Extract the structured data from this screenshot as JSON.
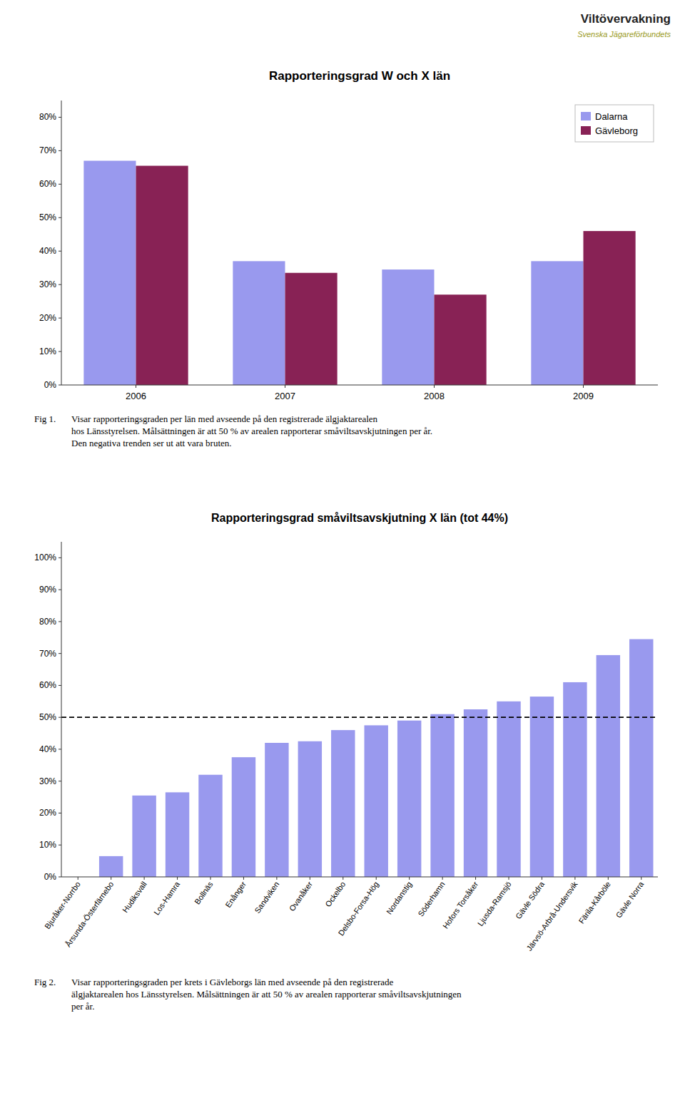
{
  "header": {
    "title": "Viltövervakning",
    "subtitle": "Svenska Jägareförbundets"
  },
  "chart_data": [
    {
      "type": "bar",
      "title": "Rapporteringsgrad W och X län",
      "categories": [
        "2006",
        "2007",
        "2008",
        "2009"
      ],
      "series": [
        {
          "name": "Dalarna",
          "color": "#9999ee",
          "values": [
            0.67,
            0.37,
            0.345,
            0.37
          ]
        },
        {
          "name": "Gävleborg",
          "color": "#882255",
          "values": [
            0.655,
            0.335,
            0.27,
            0.46
          ]
        }
      ],
      "ylim": [
        0,
        0.85
      ],
      "yticks": [
        {
          "value": 0,
          "label": "0%"
        },
        {
          "value": 0.1,
          "label": "10%"
        },
        {
          "value": 0.2,
          "label": "20%"
        },
        {
          "value": 0.3,
          "label": "30%"
        },
        {
          "value": 0.4,
          "label": "40%"
        },
        {
          "value": 0.5,
          "label": "50%"
        },
        {
          "value": 0.6,
          "label": "60%"
        },
        {
          "value": 0.7,
          "label": "70%"
        },
        {
          "value": 0.8,
          "label": "80%"
        }
      ],
      "legend": "upper right",
      "grid": false,
      "annotations": [
        "Fig 1.",
        "Visar rapporteringsgraden per län med avseende på den registrerade älgjaktarealen\nhos Länsstyrelsen. Målsättningen är att 50 % av arealen rapporterar småviltsavskjutningen per år.\nDen negativa trenden ser ut att vara bruten."
      ]
    },
    {
      "type": "bar",
      "title": "Rapporteringsgrad småviltsavskjutning X län (tot 44%)",
      "categories": [
        "Bjuråker-Norrbo",
        "Årsunda-Österfärnebo",
        "Hudiksvall",
        "Los-Hamra",
        "Bollnäs",
        "Enånger",
        "Sandviken",
        "Ovanåker",
        "Ockelbo",
        "Delsbo-Forsa-Hög",
        "Nordanstig",
        "Söderhamn",
        "Hofors Torsåker",
        "Ljusda-Ramsjö",
        "Gävle Södra",
        "Järvsö-Arbrå-Undersvik",
        "Färila-Kårböle",
        "Gävle Norra"
      ],
      "values": [
        0.0,
        0.065,
        0.255,
        0.265,
        0.32,
        0.375,
        0.42,
        0.425,
        0.46,
        0.475,
        0.49,
        0.51,
        0.525,
        0.55,
        0.565,
        0.61,
        0.695,
        0.745
      ],
      "color": "#9999ee",
      "threshold": 0.5,
      "ylim": [
        0,
        1.05
      ],
      "yticks": [
        {
          "value": 0,
          "label": "0%"
        },
        {
          "value": 0.1,
          "label": "10%"
        },
        {
          "value": 0.2,
          "label": "20%"
        },
        {
          "value": 0.3,
          "label": "30%"
        },
        {
          "value": 0.4,
          "label": "40%"
        },
        {
          "value": 0.5,
          "label": "50%"
        },
        {
          "value": 0.6,
          "label": "60%"
        },
        {
          "value": 0.7,
          "label": "70%"
        },
        {
          "value": 0.8,
          "label": "80%"
        },
        {
          "value": 0.9,
          "label": "90%"
        },
        {
          "value": 1.0,
          "label": "100%"
        }
      ],
      "grid": false,
      "annotations": [
        "Fig 2.",
        "Visar rapporteringsgraden per krets i Gävleborgs län med avseende på den registrerade\nälgjaktarealen hos Länsstyrelsen. Målsättningen är att 50 % av arealen rapporterar småviltsavskjutningen\nper år."
      ]
    }
  ]
}
